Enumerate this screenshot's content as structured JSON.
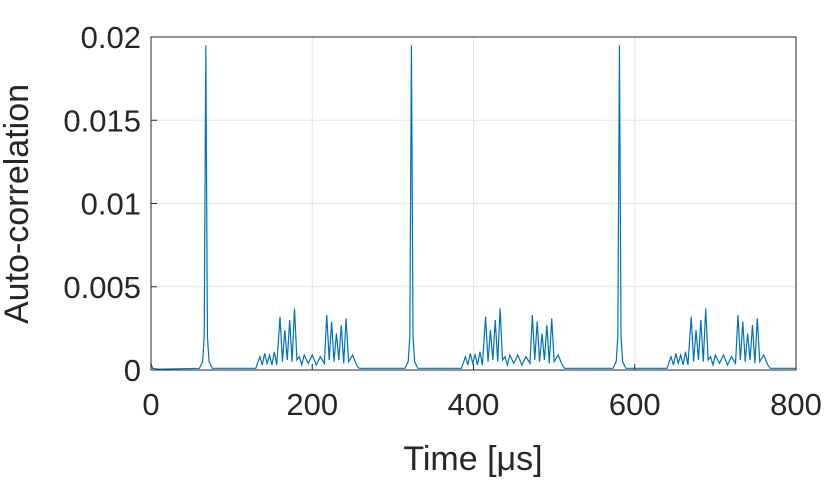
{
  "chart_data": {
    "type": "line",
    "xlabel": "Time [μs]",
    "ylabel": "Auto-correlation",
    "xlim": [
      0,
      800
    ],
    "xticks": [
      0,
      200,
      400,
      600,
      800
    ],
    "ylim": [
      0,
      0.02
    ],
    "yticks": [
      0,
      0.005,
      0.01,
      0.015,
      0.02
    ],
    "grid": true,
    "series": [
      {
        "color": "#0072BD",
        "x": [
          0,
          2,
          10,
          60,
          64,
          66,
          68,
          70,
          72,
          76,
          130,
          135,
          138,
          141,
          144,
          147,
          150,
          153,
          156,
          160,
          163,
          166,
          169,
          172,
          175,
          178,
          181,
          184,
          187,
          190,
          195,
          200,
          205,
          210,
          215,
          218,
          221,
          224,
          227,
          230,
          233,
          236,
          239,
          242,
          245,
          250,
          255,
          258,
          315,
          319,
          321,
          323,
          325,
          327,
          331,
          385,
          390,
          393,
          396,
          399,
          402,
          405,
          408,
          411,
          415,
          418,
          421,
          424,
          427,
          430,
          433,
          436,
          439,
          442,
          445,
          450,
          455,
          460,
          465,
          470,
          473,
          476,
          479,
          482,
          485,
          488,
          491,
          494,
          497,
          500,
          505,
          510,
          513,
          573,
          577,
          579,
          581,
          583,
          585,
          589,
          640,
          645,
          648,
          651,
          654,
          657,
          660,
          663,
          666,
          670,
          673,
          676,
          679,
          682,
          685,
          688,
          691,
          694,
          697,
          700,
          705,
          710,
          715,
          720,
          725,
          728,
          731,
          734,
          737,
          740,
          743,
          746,
          749,
          752,
          755,
          760,
          765,
          768,
          800
        ],
        "values": [
          0.0004,
          0.0001,
          5e-05,
          0.0001,
          0.0005,
          0.002,
          0.0195,
          0.002,
          0.0005,
          0.0001,
          0.0001,
          0.0008,
          0.0003,
          0.001,
          0.0004,
          0.0009,
          0.0003,
          0.0011,
          0.0003,
          0.0032,
          0.0005,
          0.0024,
          0.0006,
          0.003,
          0.0005,
          0.0037,
          0.0006,
          0.0008,
          0.0003,
          0.0009,
          0.0004,
          0.0009,
          0.0003,
          0.0008,
          0.0004,
          0.0033,
          0.0006,
          0.0029,
          0.0005,
          0.0022,
          0.0006,
          0.0027,
          0.0004,
          0.0031,
          0.0005,
          0.0009,
          0.0003,
          0.0001,
          0.0001,
          0.0005,
          0.002,
          0.0195,
          0.002,
          0.0005,
          0.0001,
          0.0001,
          0.0008,
          0.0003,
          0.001,
          0.0004,
          0.0009,
          0.0003,
          0.0011,
          0.0003,
          0.0032,
          0.0005,
          0.0024,
          0.0006,
          0.003,
          0.0005,
          0.0037,
          0.0006,
          0.0008,
          0.0003,
          0.0009,
          0.0004,
          0.0009,
          0.0003,
          0.0008,
          0.0004,
          0.0033,
          0.0006,
          0.0029,
          0.0005,
          0.0022,
          0.0006,
          0.0027,
          0.0004,
          0.0031,
          0.0005,
          0.0009,
          0.0003,
          0.0001,
          0.0001,
          0.0005,
          0.002,
          0.0195,
          0.002,
          0.0005,
          0.0001,
          0.0001,
          0.0008,
          0.0003,
          0.001,
          0.0004,
          0.0009,
          0.0003,
          0.0011,
          0.0003,
          0.0032,
          0.0005,
          0.0024,
          0.0006,
          0.003,
          0.0005,
          0.0037,
          0.0006,
          0.0008,
          0.0003,
          0.0009,
          0.0004,
          0.0009,
          0.0003,
          0.0008,
          0.0004,
          0.0033,
          0.0006,
          0.0029,
          0.0005,
          0.0022,
          0.0006,
          0.0027,
          0.0004,
          0.0031,
          0.0005,
          0.0009,
          0.0003,
          0.0001,
          0.0001
        ]
      }
    ]
  }
}
